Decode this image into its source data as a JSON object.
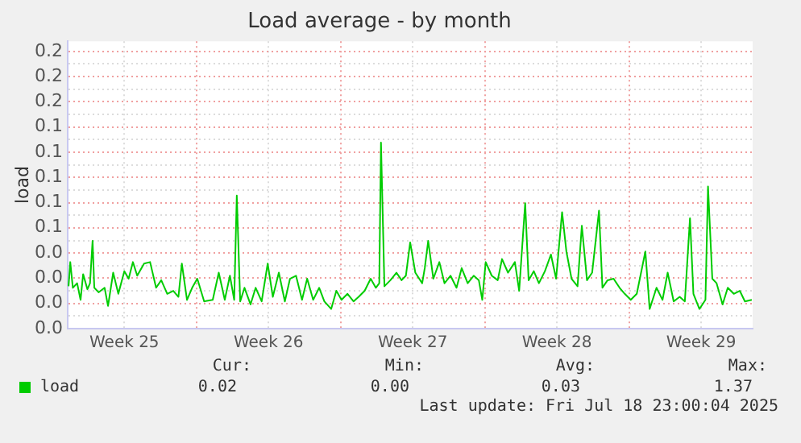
{
  "chart_data": {
    "type": "line",
    "title": "Load average - by month",
    "ylabel": "load",
    "xlim": [
      "2025-06-15T18:00",
      "2025-07-19T00:00"
    ],
    "xticks": [
      {
        "value": "2025-06-18T12:00",
        "label": "Week 25"
      },
      {
        "value": "2025-06-22T00:00",
        "label": null
      },
      {
        "value": "2025-06-25T12:00",
        "label": "Week 26"
      },
      {
        "value": "2025-06-29T00:00",
        "label": null
      },
      {
        "value": "2025-07-02T12:00",
        "label": "Week 27"
      },
      {
        "value": "2025-07-06T00:00",
        "label": null
      },
      {
        "value": "2025-07-09T12:00",
        "label": "Week 28"
      },
      {
        "value": "2025-07-13T00:00",
        "label": null
      },
      {
        "value": "2025-07-16T12:00",
        "label": "Week 29"
      }
    ],
    "ylim": [
      0,
      0.19
    ],
    "yticks": [
      {
        "value": 0,
        "label": "0.0"
      },
      {
        "value": 0.0083,
        "label": null
      },
      {
        "value": 0.0167,
        "label": "0.0"
      },
      {
        "value": 0.025,
        "label": null
      },
      {
        "value": 0.0333,
        "label": "0.0"
      },
      {
        "value": 0.0417,
        "label": null
      },
      {
        "value": 0.0499,
        "label": "0.0"
      },
      {
        "value": 0.0583,
        "label": null
      },
      {
        "value": 0.0667,
        "label": "0.1"
      },
      {
        "value": 0.075,
        "label": null
      },
      {
        "value": 0.0833,
        "label": "0.1"
      },
      {
        "value": 0.0917,
        "label": null
      },
      {
        "value": 0.1,
        "label": "0.1"
      },
      {
        "value": 0.1083,
        "label": null
      },
      {
        "value": 0.1167,
        "label": "0.1"
      },
      {
        "value": 0.125,
        "label": null
      },
      {
        "value": 0.1333,
        "label": "0.1"
      },
      {
        "value": 0.1417,
        "label": null
      },
      {
        "value": 0.15,
        "label": "0.2"
      },
      {
        "value": 0.1583,
        "label": null
      },
      {
        "value": 0.1667,
        "label": "0.2"
      },
      {
        "value": 0.175,
        "label": null
      },
      {
        "value": 0.1833,
        "label": "0.2"
      }
    ],
    "grid": true,
    "legend": "bottom left",
    "annotations": [
      "Cur:",
      "0.02",
      "Min:",
      "0.00",
      "Avg:",
      "0.03",
      "Max:",
      "1.37",
      "Last update: Fri Jul 18 23:00:04 2025"
    ],
    "series": [
      {
        "name": "load",
        "color": "#00cc00",
        "x": [
          "2025-06-15T19:00",
          "2025-06-15T21:00",
          "2025-06-16T00:00",
          "2025-06-16T05:00",
          "2025-06-16T09:00",
          "2025-06-16T12:00",
          "2025-06-16T17:00",
          "2025-06-16T20:00",
          "2025-06-16T23:00",
          "2025-06-17T01:00",
          "2025-06-17T06:00",
          "2025-06-17T13:00",
          "2025-06-17T17:00",
          "2025-06-17T23:00",
          "2025-06-18T05:00",
          "2025-06-18T12:00",
          "2025-06-18T17:00",
          "2025-06-18T22:00",
          "2025-06-19T03:00",
          "2025-06-19T11:00",
          "2025-06-19T18:00",
          "2025-06-20T01:00",
          "2025-06-20T07:00",
          "2025-06-20T14:00",
          "2025-06-20T21:00",
          "2025-06-21T03:00",
          "2025-06-21T07:00",
          "2025-06-21T13:00",
          "2025-06-21T19:00",
          "2025-06-22T01:00",
          "2025-06-22T09:00",
          "2025-06-22T19:00",
          "2025-06-23T02:00",
          "2025-06-23T09:00",
          "2025-06-23T15:00",
          "2025-06-23T20:00",
          "2025-06-23T23:00",
          "2025-06-24T03:00",
          "2025-06-24T08:00",
          "2025-06-24T15:00",
          "2025-06-24T21:00",
          "2025-06-25T04:00",
          "2025-06-25T11:00",
          "2025-06-25T17:00",
          "2025-06-26T00:00",
          "2025-06-26T07:00",
          "2025-06-26T13:00",
          "2025-06-26T20:00",
          "2025-06-27T03:00",
          "2025-06-27T09:00",
          "2025-06-27T16:00",
          "2025-06-27T23:00",
          "2025-06-28T05:00",
          "2025-06-28T13:00",
          "2025-06-28T19:00",
          "2025-06-29T01:00",
          "2025-06-29T08:00",
          "2025-06-29T15:00",
          "2025-06-29T21:00",
          "2025-06-30T04:00",
          "2025-06-30T11:00",
          "2025-06-30T17:00",
          "2025-06-30T21:00",
          "2025-06-30T23:00",
          "2025-07-01T03:00",
          "2025-07-01T10:00",
          "2025-07-01T17:00",
          "2025-07-01T23:00",
          "2025-07-02T04:00",
          "2025-07-02T09:00",
          "2025-07-02T15:00",
          "2025-07-02T23:00",
          "2025-07-03T02:00",
          "2025-07-03T06:00",
          "2025-07-03T12:00",
          "2025-07-03T19:00",
          "2025-07-04T01:00",
          "2025-07-04T08:00",
          "2025-07-04T15:00",
          "2025-07-04T21:00",
          "2025-07-05T04:00",
          "2025-07-05T11:00",
          "2025-07-05T17:00",
          "2025-07-05T21:00",
          "2025-07-06T01:00",
          "2025-07-06T08:00",
          "2025-07-06T15:00",
          "2025-07-06T20:00",
          "2025-07-07T03:00",
          "2025-07-07T11:00",
          "2025-07-07T16:00",
          "2025-07-07T23:00",
          "2025-07-08T03:00",
          "2025-07-08T09:00",
          "2025-07-08T15:00",
          "2025-07-08T22:00",
          "2025-07-09T05:00",
          "2025-07-09T11:00",
          "2025-07-09T18:00",
          "2025-07-09T23:00",
          "2025-07-10T05:00",
          "2025-07-10T12:00",
          "2025-07-10T17:00",
          "2025-07-10T23:00",
          "2025-07-11T05:00",
          "2025-07-11T13:00",
          "2025-07-11T17:00",
          "2025-07-11T23:00",
          "2025-07-12T06:00",
          "2025-07-12T13:00",
          "2025-07-12T19:00",
          "2025-07-13T02:00",
          "2025-07-13T09:00",
          "2025-07-13T19:00",
          "2025-07-14T00:00",
          "2025-07-14T08:00",
          "2025-07-14T15:00",
          "2025-07-14T21:00",
          "2025-07-15T04:00",
          "2025-07-15T11:00",
          "2025-07-15T17:00",
          "2025-07-15T23:00",
          "2025-07-16T03:00",
          "2025-07-16T10:00",
          "2025-07-16T17:00",
          "2025-07-16T20:00",
          "2025-07-17T01:00",
          "2025-07-17T06:00",
          "2025-07-17T13:00",
          "2025-07-17T19:00",
          "2025-07-18T02:00",
          "2025-07-18T09:00",
          "2025-07-18T15:00",
          "2025-07-18T23:00"
        ],
        "values": [
          0.028,
          0.044,
          0.027,
          0.03,
          0.019,
          0.036,
          0.026,
          0.03,
          0.058,
          0.027,
          0.024,
          0.027,
          0.015,
          0.037,
          0.023,
          0.038,
          0.033,
          0.044,
          0.035,
          0.043,
          0.044,
          0.027,
          0.032,
          0.023,
          0.025,
          0.021,
          0.043,
          0.019,
          0.027,
          0.033,
          0.018,
          0.019,
          0.037,
          0.019,
          0.035,
          0.019,
          0.088,
          0.018,
          0.027,
          0.016,
          0.027,
          0.018,
          0.043,
          0.021,
          0.037,
          0.018,
          0.033,
          0.035,
          0.019,
          0.033,
          0.019,
          0.027,
          0.018,
          0.013,
          0.025,
          0.019,
          0.023,
          0.018,
          0.021,
          0.025,
          0.033,
          0.027,
          0.03,
          0.123,
          0.028,
          0.032,
          0.037,
          0.032,
          0.035,
          0.057,
          0.037,
          0.03,
          0.04,
          0.058,
          0.033,
          0.044,
          0.03,
          0.035,
          0.027,
          0.04,
          0.03,
          0.035,
          0.032,
          0.019,
          0.044,
          0.035,
          0.032,
          0.046,
          0.037,
          0.044,
          0.025,
          0.083,
          0.032,
          0.038,
          0.03,
          0.038,
          0.049,
          0.033,
          0.077,
          0.051,
          0.033,
          0.028,
          0.068,
          0.032,
          0.037,
          0.078,
          0.027,
          0.032,
          0.033,
          0.027,
          0.023,
          0.019,
          0.023,
          0.051,
          0.013,
          0.027,
          0.019,
          0.037,
          0.018,
          0.021,
          0.018,
          0.073,
          0.023,
          0.013,
          0.019,
          0.094,
          0.033,
          0.03,
          0.016,
          0.027,
          0.023,
          0.025,
          0.018,
          0.019
        ]
      }
    ]
  }
}
